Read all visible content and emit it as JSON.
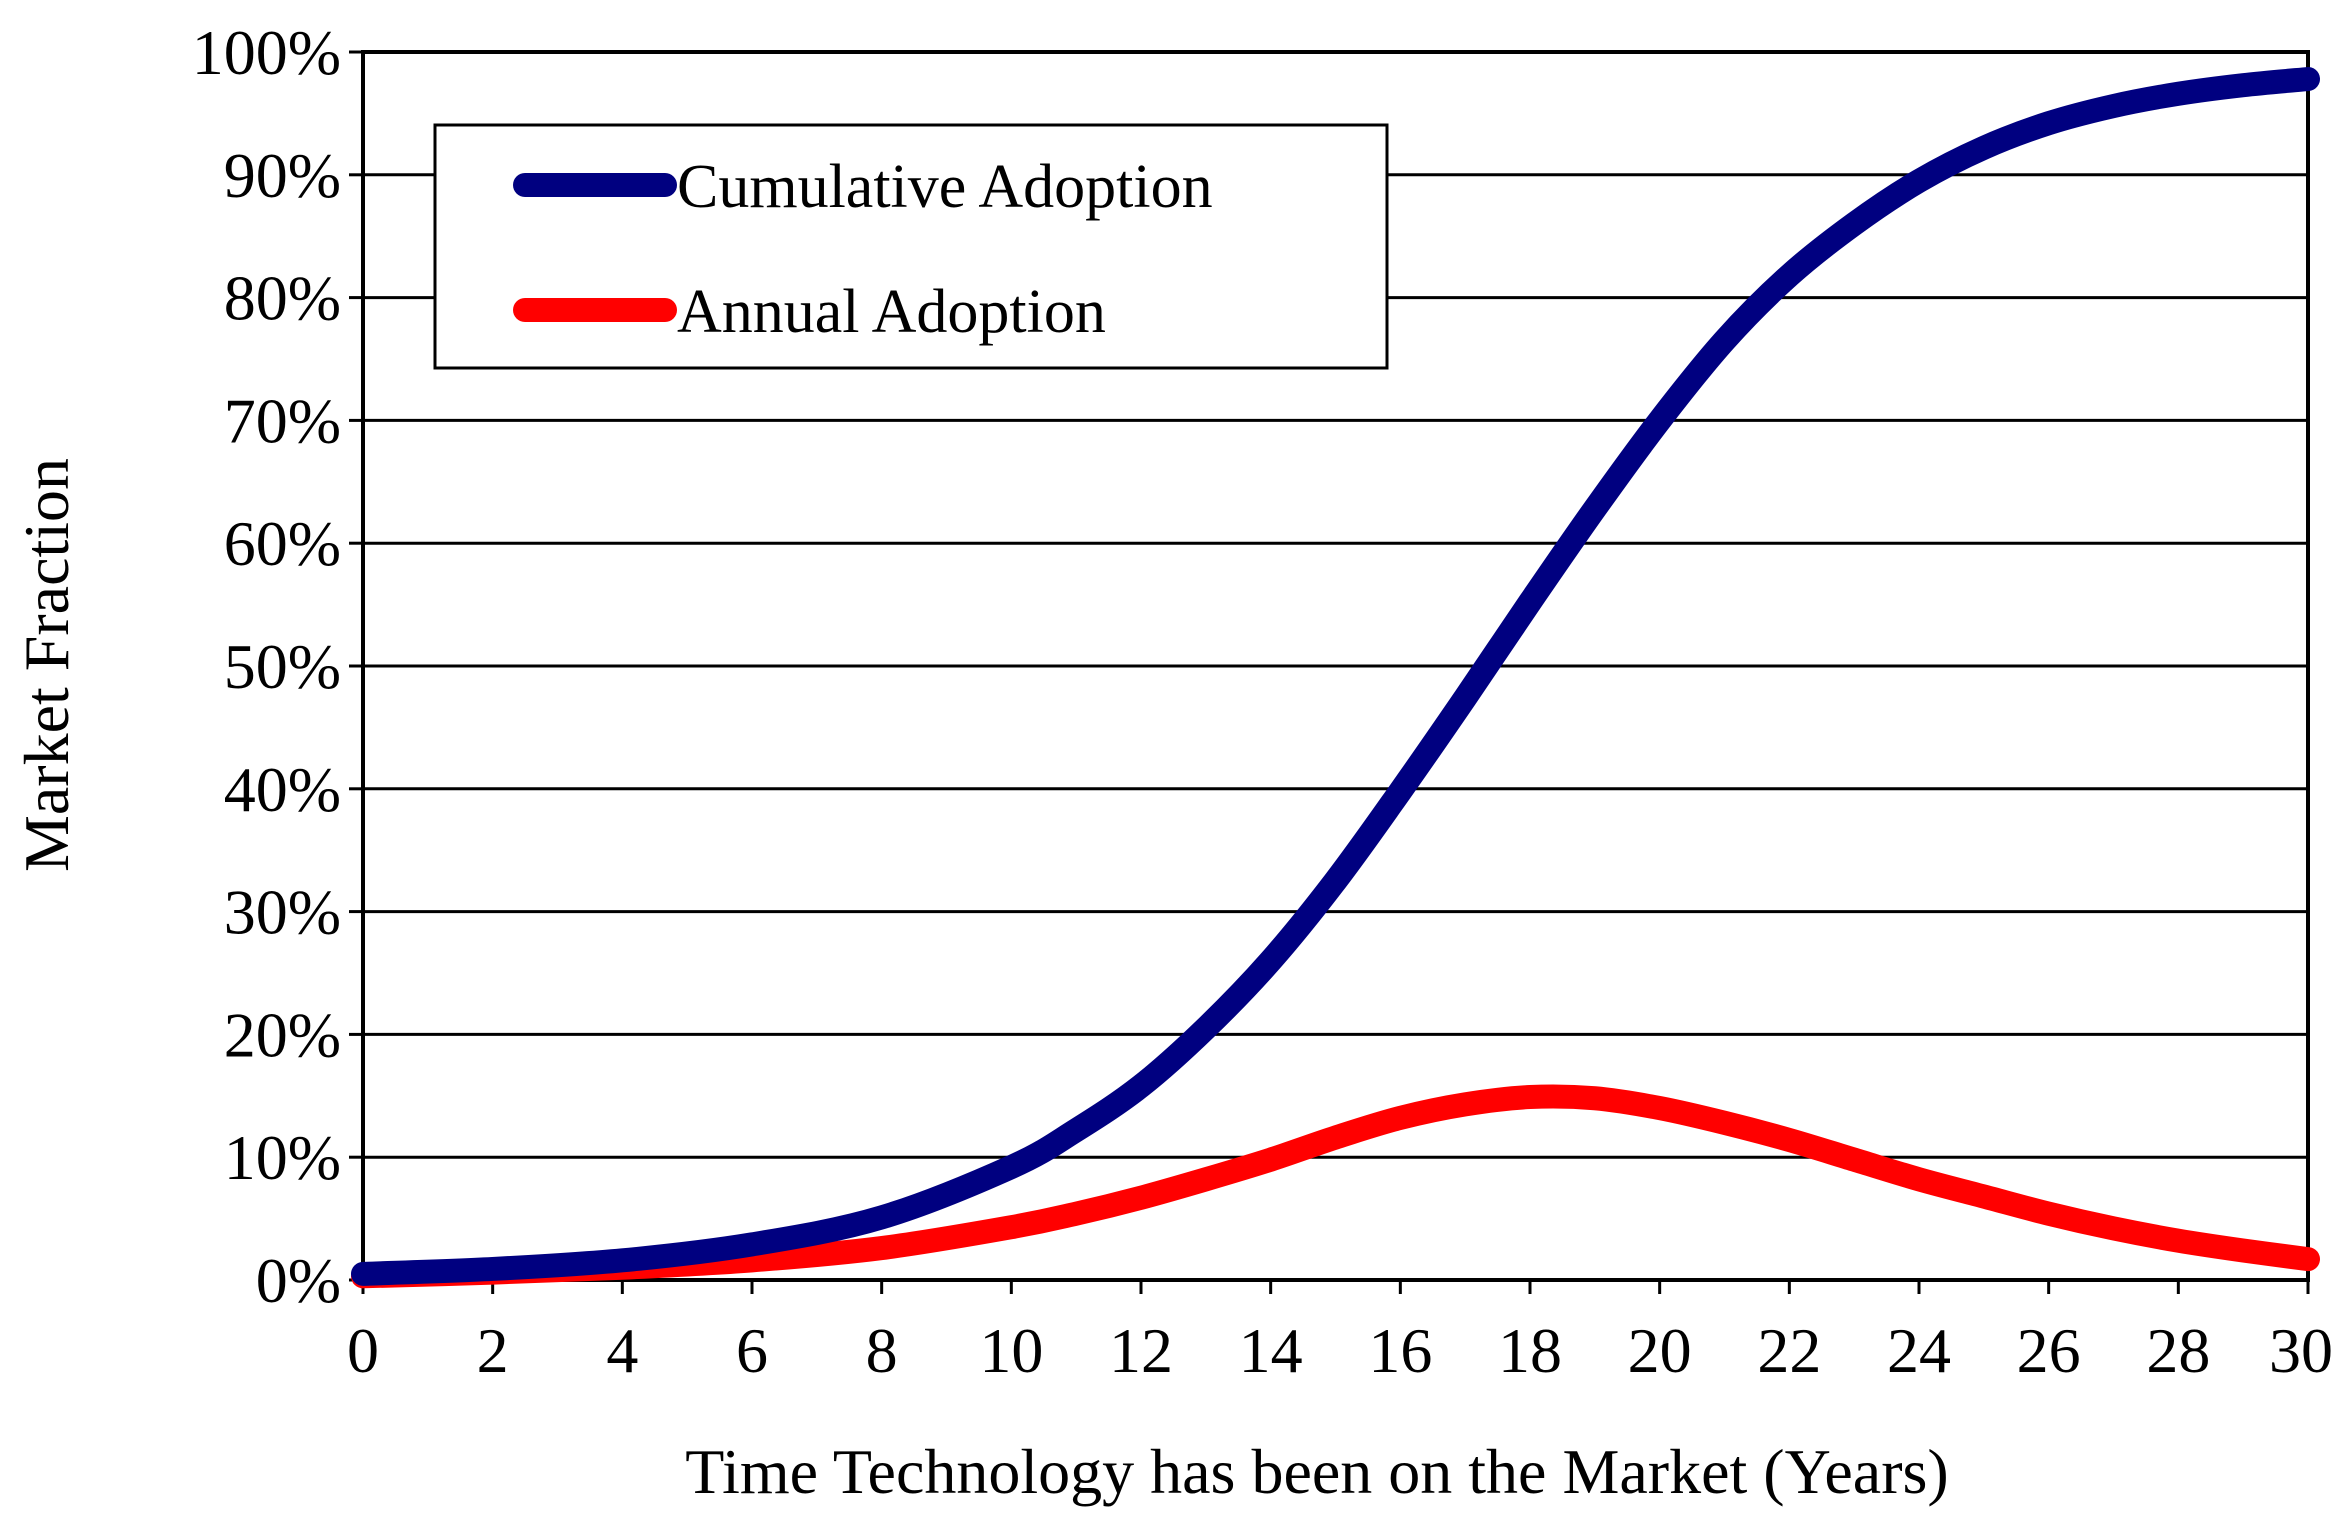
{
  "chart_data": {
    "type": "line",
    "xlabel": "Time Technology has been on the Market (Years)",
    "ylabel": "Market Fraction",
    "xlim": [
      0,
      30
    ],
    "ylim": [
      0,
      100
    ],
    "x_ticks": [
      0,
      2,
      4,
      6,
      8,
      10,
      12,
      14,
      16,
      18,
      20,
      22,
      24,
      26,
      28,
      30
    ],
    "x_tick_labels": [
      "0",
      "2",
      "4",
      "6",
      "8",
      "10",
      "12",
      "14",
      "16",
      "18",
      "20",
      "22",
      "24",
      "26",
      "28",
      "30"
    ],
    "y_ticks": [
      0,
      10,
      20,
      30,
      40,
      50,
      60,
      70,
      80,
      90,
      100
    ],
    "y_tick_labels": [
      "0%",
      "10%",
      "20%",
      "30%",
      "40%",
      "50%",
      "60%",
      "70%",
      "80%",
      "90%",
      "100%"
    ],
    "grid": "horizontal",
    "legend_position": "top-left",
    "x": [
      0,
      2,
      4,
      6,
      8,
      10,
      11,
      12,
      13,
      14,
      15,
      16,
      17,
      18,
      19,
      20,
      21,
      22,
      23,
      24,
      25,
      26,
      27,
      28,
      29,
      30
    ],
    "series": [
      {
        "name": "Cumulative Adoption",
        "color": "#000080",
        "values": [
          0.5,
          0.9,
          1.6,
          2.9,
          5.1,
          9.2,
          12.2,
          15.8,
          20.5,
          26.0,
          32.5,
          39.8,
          47.4,
          55.2,
          62.8,
          70.0,
          76.5,
          81.8,
          86.0,
          89.5,
          92.2,
          94.2,
          95.6,
          96.6,
          97.3,
          97.8
        ]
      },
      {
        "name": "Annual Adoption",
        "color": "#ff0000",
        "values": [
          0.3,
          0.6,
          1.0,
          1.6,
          2.6,
          4.3,
          5.4,
          6.7,
          8.2,
          9.8,
          11.6,
          13.2,
          14.3,
          14.9,
          14.8,
          14.0,
          12.8,
          11.4,
          9.8,
          8.2,
          6.8,
          5.4,
          4.2,
          3.2,
          2.4,
          1.7
        ]
      }
    ]
  }
}
